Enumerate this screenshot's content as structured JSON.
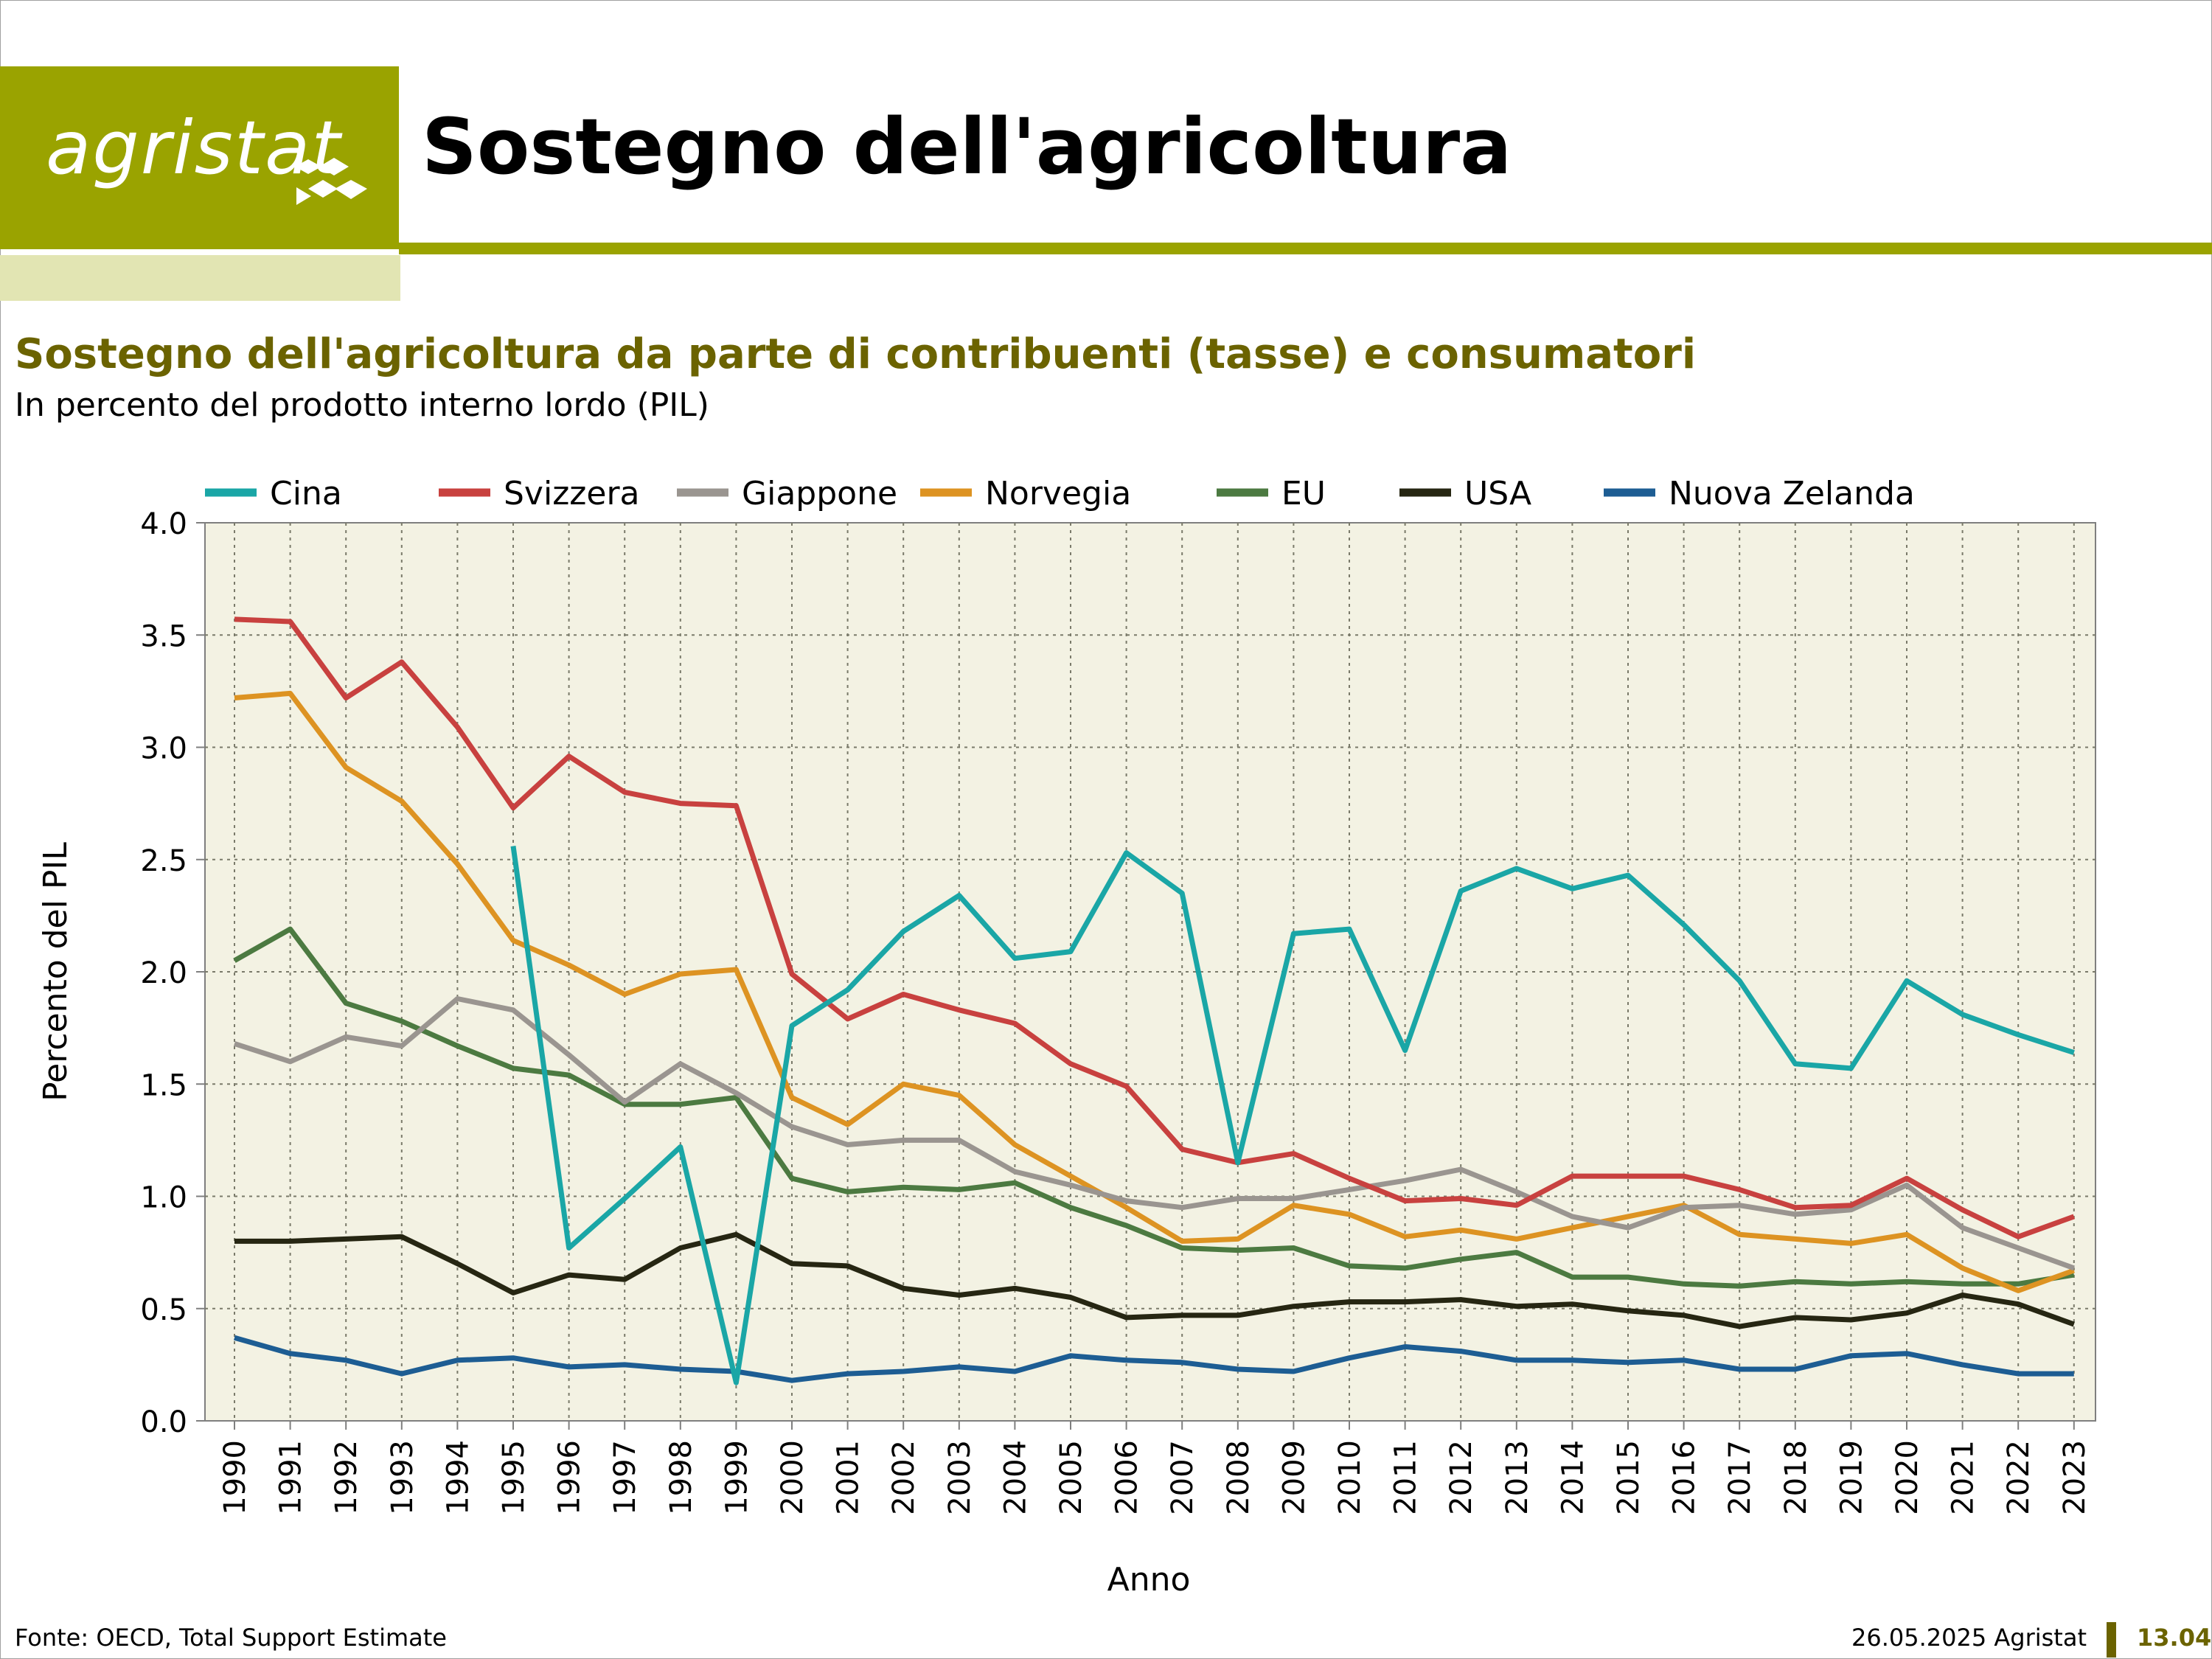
{
  "header": {
    "logo_text": "agristat",
    "title": "Sostegno dell'agricoltura"
  },
  "colors": {
    "brand": "#9aa300",
    "brand_light": "#e2e5b3",
    "title_olive": "#6b6300",
    "plot_bg": "#f3f2e3"
  },
  "chart_data": {
    "type": "line",
    "title": "Sostegno dell'agricoltura da parte di contribuenti (tasse) e consumatori",
    "subtitle": "In percento del prodotto interno lordo (PIL)",
    "xlabel": "Anno",
    "ylabel": "Percento del PIL",
    "ylim": [
      0,
      4
    ],
    "y_ticks": [
      "0.0",
      "0.5",
      "1.0",
      "1.5",
      "2.0",
      "2.5",
      "3.0",
      "3.5",
      "4.0"
    ],
    "grid": true,
    "legend_position": "top",
    "x": [
      "1990",
      "1991",
      "1992",
      "1993",
      "1994",
      "1995",
      "1996",
      "1997",
      "1998",
      "1999",
      "2000",
      "2001",
      "2002",
      "2003",
      "2004",
      "2005",
      "2006",
      "2007",
      "2008",
      "2009",
      "2010",
      "2011",
      "2012",
      "2013",
      "2014",
      "2015",
      "2016",
      "2017",
      "2018",
      "2019",
      "2020",
      "2021",
      "2022",
      "2023"
    ],
    "series": [
      {
        "name": "Cina",
        "color": "#1aa6a6",
        "values": [
          null,
          null,
          null,
          null,
          null,
          2.56,
          0.77,
          0.99,
          1.22,
          0.17,
          1.76,
          1.92,
          2.18,
          2.34,
          2.06,
          2.09,
          2.53,
          2.35,
          1.15,
          2.17,
          2.19,
          1.65,
          2.36,
          2.46,
          2.37,
          2.43,
          2.21,
          1.96,
          1.59,
          1.57,
          1.96,
          1.81,
          1.72,
          1.64
        ]
      },
      {
        "name": "Svizzera",
        "color": "#c8413f",
        "values": [
          3.57,
          3.56,
          3.22,
          3.38,
          3.09,
          2.73,
          2.96,
          2.8,
          2.75,
          2.74,
          1.99,
          1.79,
          1.9,
          1.83,
          1.77,
          1.59,
          1.49,
          1.21,
          1.15,
          1.19,
          1.08,
          0.98,
          0.99,
          0.96,
          1.09,
          1.09,
          1.09,
          1.03,
          0.95,
          0.96,
          1.08,
          0.94,
          0.82,
          0.91
        ]
      },
      {
        "name": "Giappone",
        "color": "#9a9590",
        "values": [
          1.68,
          1.6,
          1.71,
          1.67,
          1.88,
          1.83,
          1.63,
          1.42,
          1.59,
          1.46,
          1.31,
          1.23,
          1.25,
          1.25,
          1.11,
          1.05,
          0.98,
          0.95,
          0.99,
          0.99,
          1.03,
          1.07,
          1.12,
          1.02,
          0.91,
          0.86,
          0.95,
          0.96,
          0.92,
          0.94,
          1.05,
          0.86,
          0.77,
          0.68
        ]
      },
      {
        "name": "Norvegia",
        "color": "#dd9322",
        "values": [
          3.22,
          3.24,
          2.91,
          2.76,
          2.48,
          2.14,
          2.03,
          1.9,
          1.99,
          2.01,
          1.44,
          1.32,
          1.5,
          1.45,
          1.23,
          1.09,
          0.95,
          0.8,
          0.81,
          0.96,
          0.92,
          0.82,
          0.85,
          0.81,
          0.86,
          0.91,
          0.96,
          0.83,
          0.81,
          0.79,
          0.83,
          0.68,
          0.58,
          0.67
        ]
      },
      {
        "name": "EU",
        "color": "#4c7a41",
        "values": [
          2.05,
          2.19,
          1.86,
          1.78,
          1.67,
          1.57,
          1.54,
          1.41,
          1.41,
          1.44,
          1.08,
          1.02,
          1.04,
          1.03,
          1.06,
          0.95,
          0.87,
          0.77,
          0.76,
          0.77,
          0.69,
          0.68,
          0.72,
          0.75,
          0.64,
          0.64,
          0.61,
          0.6,
          0.62,
          0.61,
          0.62,
          0.61,
          0.61,
          0.65
        ]
      },
      {
        "name": "USA",
        "color": "#262612",
        "values": [
          0.8,
          0.8,
          0.81,
          0.82,
          0.7,
          0.57,
          0.65,
          0.63,
          0.77,
          0.83,
          0.7,
          0.69,
          0.59,
          0.56,
          0.59,
          0.55,
          0.46,
          0.47,
          0.47,
          0.51,
          0.53,
          0.53,
          0.54,
          0.51,
          0.52,
          0.49,
          0.47,
          0.42,
          0.46,
          0.45,
          0.48,
          0.56,
          0.52,
          0.43
        ]
      },
      {
        "name": "Nuova Zelanda",
        "color": "#1d5d93",
        "values": [
          0.37,
          0.3,
          0.27,
          0.21,
          0.27,
          0.28,
          0.24,
          0.25,
          0.23,
          0.22,
          0.18,
          0.21,
          0.22,
          0.24,
          0.22,
          0.29,
          0.27,
          0.26,
          0.23,
          0.22,
          0.28,
          0.33,
          0.31,
          0.27,
          0.27,
          0.26,
          0.27,
          0.23,
          0.23,
          0.29,
          0.3,
          0.25,
          0.21,
          0.21
        ]
      }
    ]
  },
  "footer": {
    "source": "Fonte: OECD, Total Support Estimate",
    "date_credit": "26.05.2025 Agristat",
    "page_number": "13.04"
  }
}
